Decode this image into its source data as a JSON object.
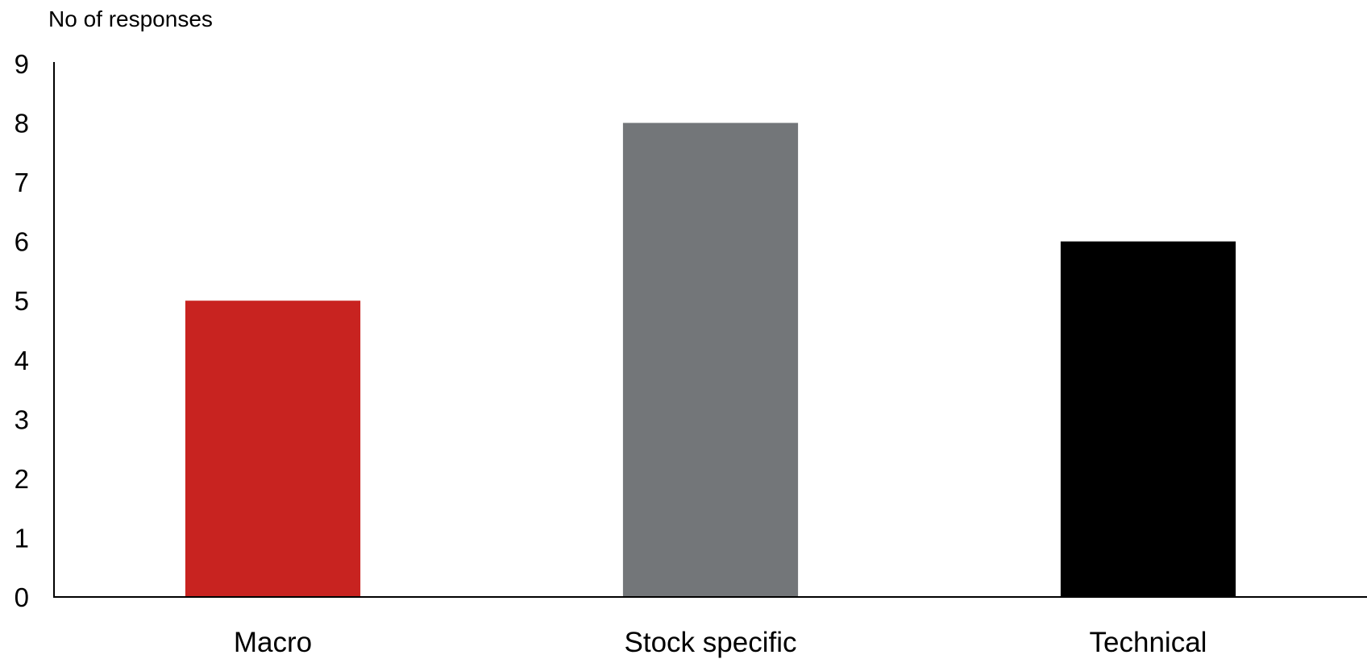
{
  "chart_data": {
    "type": "bar",
    "title": "",
    "xlabel": "",
    "ylabel": "No of responses",
    "categories": [
      "Macro",
      "Stock specific",
      "Technical"
    ],
    "values": [
      5,
      8,
      6
    ],
    "colors": [
      "#c82320",
      "#737679",
      "#000000"
    ],
    "ylim": [
      0,
      9
    ],
    "yticks": [
      0,
      1,
      2,
      3,
      4,
      5,
      6,
      7,
      8,
      9
    ],
    "grid": false,
    "legend": "none"
  }
}
